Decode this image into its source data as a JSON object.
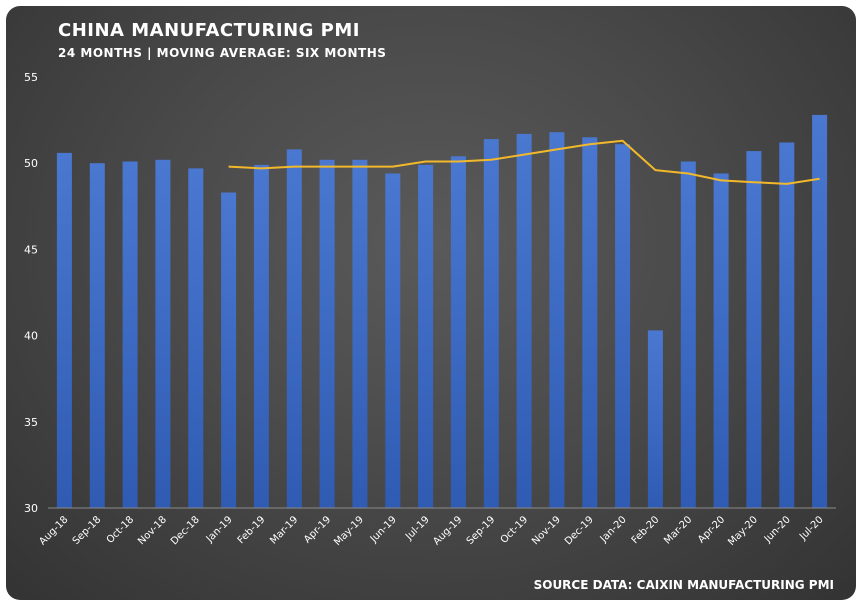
{
  "header": {
    "title": "CHINA MANUFACTURING PMI",
    "subtitle": "24 MONTHS | MOVING AVERAGE: SIX MONTHS"
  },
  "footer": {
    "source": "SOURCE DATA: CAIXIN MANUFACTURING PMI"
  },
  "colors": {
    "bar": "#4a78d0",
    "bar_dark": "#2f5bb3",
    "line": "#f2b82c",
    "background": "#4a4a4a"
  },
  "chart_data": {
    "type": "bar",
    "title": "CHINA MANUFACTURING PMI",
    "subtitle": "24 MONTHS | MOVING AVERAGE: SIX MONTHS",
    "xlabel": "",
    "ylabel": "",
    "ylim": [
      30,
      55
    ],
    "yticks": [
      30,
      35,
      40,
      45,
      50,
      55
    ],
    "grid": false,
    "legend": "none",
    "categories": [
      "Aug-18",
      "Sep-18",
      "Oct-18",
      "Nov-18",
      "Dec-18",
      "Jan-19",
      "Feb-19",
      "Mar-19",
      "Apr-19",
      "May-19",
      "Jun-19",
      "Jul-19",
      "Aug-19",
      "Sep-19",
      "Oct-19",
      "Nov-19",
      "Dec-19",
      "Jan-20",
      "Feb-20",
      "Mar-20",
      "Apr-20",
      "May-20",
      "Jun-20",
      "Jul-20"
    ],
    "series": [
      {
        "type": "bar",
        "values": [
          50.6,
          50.0,
          50.1,
          50.2,
          49.7,
          48.3,
          49.9,
          50.8,
          50.2,
          50.2,
          49.4,
          49.9,
          50.4,
          51.4,
          51.7,
          51.8,
          51.5,
          51.1,
          40.3,
          50.1,
          49.4,
          50.7,
          51.2,
          52.8
        ]
      },
      {
        "type": "line",
        "values": [
          null,
          null,
          null,
          null,
          null,
          49.8,
          49.7,
          49.8,
          49.8,
          49.8,
          49.8,
          50.1,
          50.1,
          50.2,
          50.5,
          50.8,
          51.1,
          51.3,
          49.6,
          49.4,
          49.0,
          48.9,
          48.8,
          49.1
        ]
      }
    ]
  }
}
